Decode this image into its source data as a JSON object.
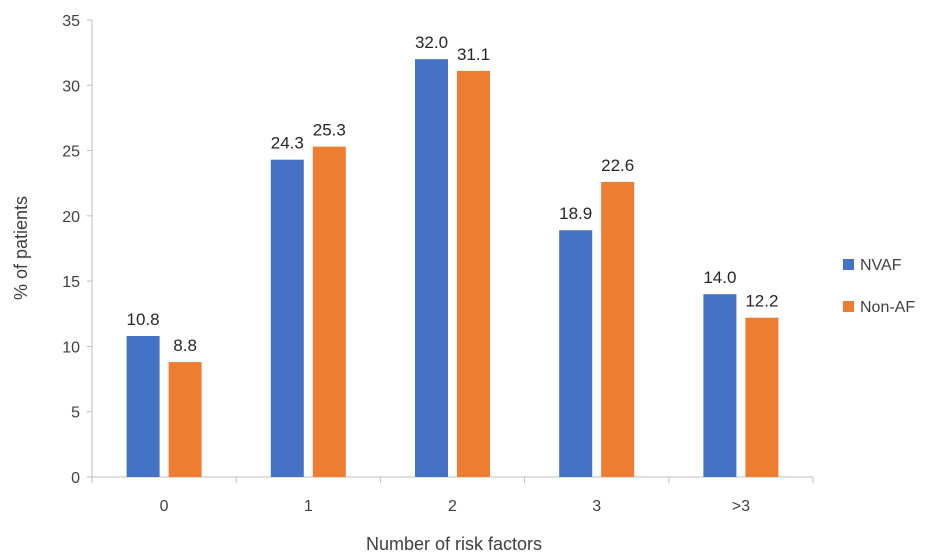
{
  "chart_data": {
    "type": "bar",
    "title": "",
    "xlabel": "Number of risk factors",
    "ylabel": "% of patients",
    "categories": [
      "0",
      "1",
      "2",
      "3",
      ">3"
    ],
    "series": [
      {
        "name": "NVAF",
        "color": "#4472C4",
        "values": [
          10.8,
          24.3,
          32.0,
          18.9,
          14.0
        ],
        "labels": [
          "10.8",
          "24.3",
          "32.0",
          "18.9",
          "14.0"
        ]
      },
      {
        "name": "Non-AF",
        "color": "#ED7D31",
        "values": [
          8.8,
          25.3,
          31.1,
          22.6,
          12.2
        ],
        "labels": [
          "8.8",
          "25.3",
          "31.1",
          "22.6",
          "12.2"
        ]
      }
    ],
    "ylim": [
      0,
      35
    ],
    "yticks": [
      "0",
      "5",
      "10",
      "15",
      "20",
      "25",
      "30",
      "35"
    ],
    "grid": false,
    "legend": "right"
  }
}
